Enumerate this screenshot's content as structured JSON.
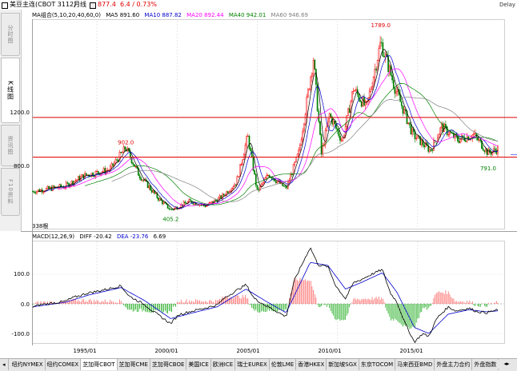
{
  "header": {
    "title": "美豆主连(CBOT 3112)",
    "period": "月线",
    "price": "877.4",
    "change": "6.4 / 0.73%",
    "delay": "Delay"
  },
  "sidebar": {
    "tabs": [
      {
        "label": "分时图",
        "active": false
      },
      {
        "label": "K线图",
        "active": true
      },
      {
        "label": "资讯图",
        "active": false
      },
      {
        "label": "F10资料",
        "active": false
      }
    ]
  },
  "main_chart": {
    "legend": {
      "ma_set": "MA组合(5,10,20,40,60,0)",
      "ma5": "MA5 891.60",
      "ma10": "MA10 887.82",
      "ma20": "MA20 892.44",
      "ma40": "MA40 942.01",
      "ma60": "MA60 946.69"
    },
    "bar_count": "338根",
    "colors": {
      "up": "#ff0000",
      "down": "#008000",
      "ma5": "#000000",
      "ma10": "#0000cd",
      "ma20": "#ff00ff",
      "ma40": "#008000",
      "ma60": "#808080",
      "hline": "#e00000"
    },
    "hlines": [
      1130,
      830
    ]
  },
  "macd_panel": {
    "legend": {
      "name": "MACD(12,26,9)",
      "diff": "DIFF -20.42",
      "dea": "DEA -23.76",
      "macd": "6.69"
    },
    "colors": {
      "diff": "#000000",
      "dea": "#0000cd"
    }
  },
  "bottom_tabs": [
    {
      "label": "纽约NYMEX",
      "active": false
    },
    {
      "label": "纽约COMEX",
      "active": false
    },
    {
      "label": "芝加哥CBOT",
      "active": true
    },
    {
      "label": "芝加哥CME",
      "active": false
    },
    {
      "label": "芝加哥CBOE",
      "active": false
    },
    {
      "label": "美国ICE",
      "active": false
    },
    {
      "label": "欧洲ICE",
      "active": false
    },
    {
      "label": "瑞士EUREX",
      "active": false
    },
    {
      "label": "伦敦LME",
      "active": false
    },
    {
      "label": "香港HKEX",
      "active": false
    },
    {
      "label": "新加坡SGX",
      "active": false
    },
    {
      "label": "东京TOCOM",
      "active": false
    },
    {
      "label": "马来西亚BMD",
      "active": false
    },
    {
      "label": "外盘主力合约",
      "active": false
    },
    {
      "label": "外盘指数",
      "active": false
    }
  ],
  "chart_data": {
    "type": "candlestick",
    "title": "美豆主连(CBOT 3112) 月线",
    "x_ticks": [
      "1995/01",
      "2000/01",
      "2005/01",
      "2010/01",
      "2015/01"
    ],
    "y_ticks": [
      800.0,
      1200.0
    ],
    "y_range": [
      300,
      1850
    ],
    "annotations": [
      {
        "label": "1789.0",
        "year": 2012.7,
        "value": 1789.0
      },
      {
        "label": "902.0",
        "year": 1996.8,
        "value": 902.0
      },
      {
        "label": "405.2",
        "year": 1999.6,
        "value": 405.2
      },
      {
        "label": "791.0",
        "year": 2019.4,
        "value": 791.0
      }
    ],
    "keypoints": [
      [
        1991.0,
        570
      ],
      [
        1993.0,
        610
      ],
      [
        1994.2,
        690
      ],
      [
        1995.8,
        735
      ],
      [
        1996.8,
        902
      ],
      [
        1997.6,
        700
      ],
      [
        1998.8,
        520
      ],
      [
        1999.6,
        430
      ],
      [
        2000.8,
        495
      ],
      [
        2001.8,
        460
      ],
      [
        2002.8,
        530
      ],
      [
        2003.7,
        640
      ],
      [
        2004.4,
        990
      ],
      [
        2005.0,
        570
      ],
      [
        2005.7,
        700
      ],
      [
        2006.8,
        590
      ],
      [
        2007.6,
        870
      ],
      [
        2008.5,
        1580
      ],
      [
        2009.0,
        850
      ],
      [
        2009.5,
        1150
      ],
      [
        2010.3,
        950
      ],
      [
        2011.0,
        1350
      ],
      [
        2011.8,
        1200
      ],
      [
        2012.7,
        1700
      ],
      [
        2013.6,
        1350
      ],
      [
        2014.7,
        1000
      ],
      [
        2015.8,
        880
      ],
      [
        2016.5,
        1060
      ],
      [
        2017.5,
        960
      ],
      [
        2018.5,
        1000
      ],
      [
        2019.4,
        860
      ],
      [
        2020.0,
        890
      ]
    ],
    "macd": {
      "dea_keypoints": [
        [
          1991.0,
          -10
        ],
        [
          1993.0,
          5
        ],
        [
          1994.5,
          30
        ],
        [
          1996.5,
          55
        ],
        [
          1998.0,
          10
        ],
        [
          1999.6,
          -50
        ],
        [
          2001.0,
          -30
        ],
        [
          2002.5,
          -10
        ],
        [
          2004.3,
          50
        ],
        [
          2005.5,
          10
        ],
        [
          2006.8,
          -30
        ],
        [
          2008.3,
          140
        ],
        [
          2009.4,
          130
        ],
        [
          2010.5,
          50
        ],
        [
          2011.4,
          70
        ],
        [
          2012.8,
          105
        ],
        [
          2013.7,
          40
        ],
        [
          2014.8,
          -80
        ],
        [
          2015.7,
          -100
        ],
        [
          2016.9,
          -35
        ],
        [
          2018.2,
          -20
        ],
        [
          2019.3,
          -27
        ],
        [
          2020.0,
          -23.76
        ]
      ]
    }
  }
}
